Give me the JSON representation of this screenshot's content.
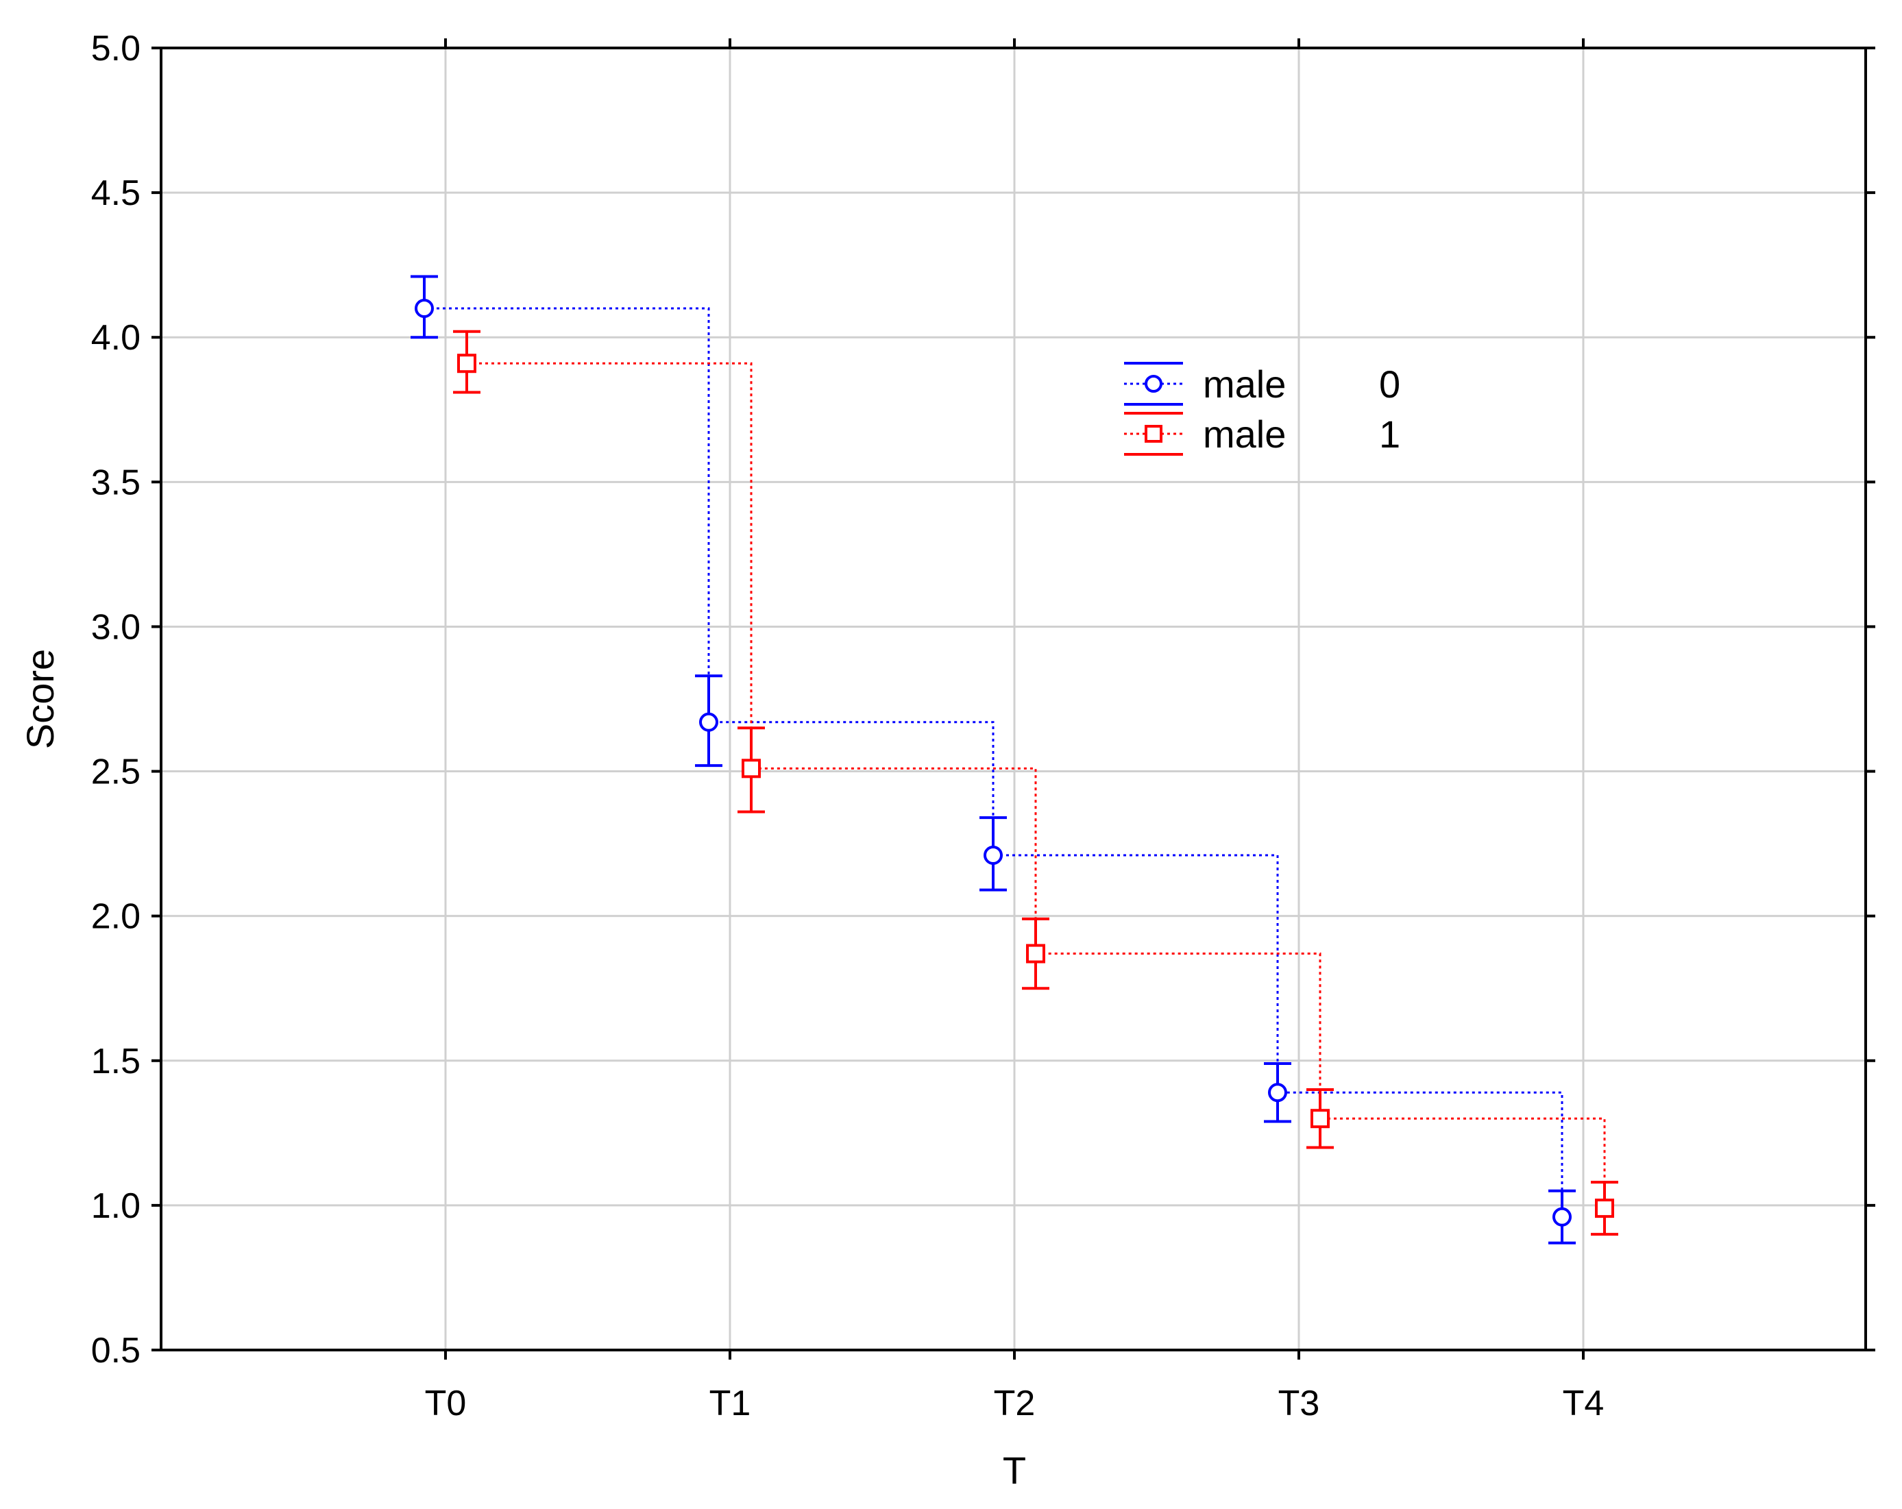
{
  "chart_data": {
    "type": "line",
    "title": "",
    "xlabel": "T",
    "ylabel": "Score",
    "categories": [
      "T0",
      "T1",
      "T2",
      "T3",
      "T4"
    ],
    "ylim": [
      0.5,
      5.0
    ],
    "yticks": [
      "0.5",
      "1.0",
      "1.5",
      "2.0",
      "2.5",
      "3.0",
      "3.5",
      "4.0",
      "4.5",
      "5.0"
    ],
    "grid": true,
    "line_style": "dotted step",
    "legend_position": "top-center",
    "series": [
      {
        "legend_label": "male",
        "legend_value": "0",
        "color": "#0000ff",
        "marker": "circle",
        "values": [
          4.1,
          2.67,
          2.21,
          1.39,
          0.96
        ],
        "lower": [
          4.0,
          2.52,
          2.09,
          1.29,
          0.87
        ],
        "upper": [
          4.21,
          2.83,
          2.34,
          1.49,
          1.05
        ]
      },
      {
        "legend_label": "male",
        "legend_value": "1",
        "color": "#ff0000",
        "marker": "square",
        "values": [
          3.91,
          2.51,
          1.87,
          1.3,
          0.99
        ],
        "lower": [
          3.81,
          2.36,
          1.75,
          1.2,
          0.9
        ],
        "upper": [
          4.02,
          2.65,
          1.99,
          1.4,
          1.08
        ]
      }
    ]
  }
}
